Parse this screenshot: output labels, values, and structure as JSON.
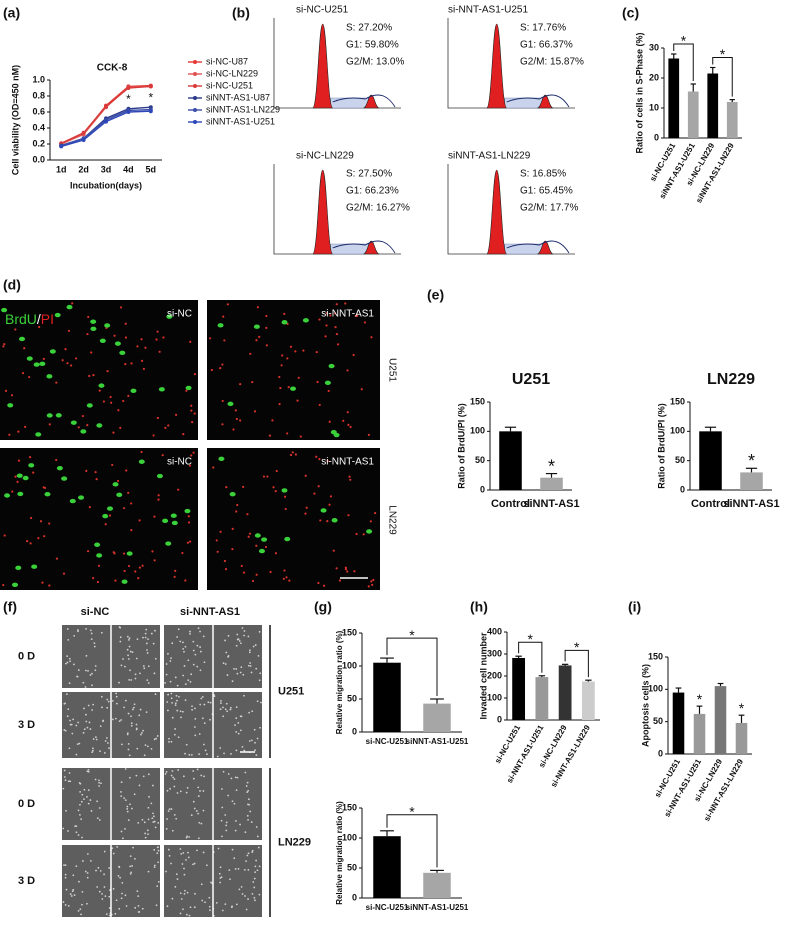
{
  "panel_labels": [
    "(a)",
    "(b)",
    "(c)",
    "(d)",
    "(e)",
    "(f)",
    "(g)",
    "(h)",
    "(i)"
  ],
  "flow_cytometry": [
    {
      "title": "si-NC-U251",
      "lines": [
        "S: 27.20%",
        "G1: 59.80%",
        "G2/M: 13.0%"
      ]
    },
    {
      "title": "si-NNT-AS1-U251",
      "lines": [
        "S: 17.76%",
        "G1: 66.37%",
        "G2/M: 15.87%"
      ]
    },
    {
      "title": "si-NC-LN229",
      "lines": [
        "S: 27.50%",
        "G1: 66.23%",
        "G2/M: 16.27%"
      ]
    },
    {
      "title": "siNNT-AS1-LN229",
      "lines": [
        "S: 16.85%",
        "G1: 65.45%",
        "G2/M: 17.7%"
      ]
    }
  ],
  "brdu_panel": {
    "stain_labels": [
      "BrdU",
      "/",
      "PI"
    ],
    "conditions": [
      "si-NC",
      "si-NNT-AS1",
      "si-NC",
      "si-NNT-AS1"
    ],
    "cell_lines": [
      "U251",
      "LN229"
    ]
  },
  "wound_panel": {
    "column_headers": [
      "si-NC",
      "si-NNT-AS1"
    ],
    "row_labels": [
      "0 D",
      "3 D",
      "0 D",
      "3 D"
    ],
    "cell_lines": [
      "U251",
      "LN229"
    ]
  },
  "chart_data": [
    {
      "type": "line",
      "title": "CCK-8",
      "x_label": "Incubation(days)",
      "y_label": "Cell viability (OD=450 nM)",
      "categories": [
        "1d",
        "2d",
        "3d",
        "4d",
        "5d"
      ],
      "ylim": [
        0,
        1.0
      ],
      "yticks": [
        {
          "value": 0,
          "label": "0.0"
        },
        {
          "value": 0.2,
          "label": "0.2"
        },
        {
          "value": 0.4,
          "label": "0.4"
        },
        {
          "value": 0.6,
          "label": "0.6"
        },
        {
          "value": 0.8,
          "label": "0.8"
        },
        {
          "value": 1.0,
          "label": "1.0"
        }
      ],
      "series": [
        {
          "name": "si-NC-U87",
          "color": "#e53935",
          "values": [
            0.2,
            0.33,
            0.68,
            0.92,
            0.93
          ]
        },
        {
          "name": "si-NC-LN229",
          "color": "#e05252",
          "values": [
            0.2,
            0.32,
            0.66,
            0.91,
            0.92
          ]
        },
        {
          "name": "si-NC-U251",
          "color": "#d83a3a",
          "values": [
            0.21,
            0.34,
            0.67,
            0.9,
            0.92
          ]
        },
        {
          "name": "siNNT-AS1-U87",
          "color": "#2b3a8c",
          "values": [
            0.18,
            0.27,
            0.52,
            0.64,
            0.66
          ]
        },
        {
          "name": "siNNT-AS1-LN229",
          "color": "#3b4fa8",
          "values": [
            0.18,
            0.27,
            0.5,
            0.62,
            0.63
          ]
        },
        {
          "name": "siNNT-AS1-U251",
          "color": "#2d46b9",
          "values": [
            0.17,
            0.25,
            0.48,
            0.6,
            0.61
          ]
        }
      ],
      "annotations": [
        "*",
        "*"
      ]
    },
    {
      "type": "bar",
      "y_label": "Ratio of cells in S-Phase (%)",
      "categories": [
        "si-NC-U251",
        "siNNT-AS1-U251",
        "si-NC-LN229",
        "siNNT-AS1-LN229"
      ],
      "values": [
        26.5,
        15.5,
        21.5,
        12
      ],
      "errors": [
        1.5,
        2.5,
        2,
        0.8
      ],
      "colors": [
        "#000000",
        "#a6a6a6",
        "#000000",
        "#a6a6a6"
      ],
      "ylim": [
        0,
        30
      ],
      "yticks": [
        0,
        10,
        20,
        30
      ],
      "annotations": [
        "*",
        "*"
      ]
    },
    {
      "type": "bar",
      "title": "U251",
      "y_label": "Ratio of BrdU/PI (%)",
      "categories": [
        "Control",
        "siNNT-AS1"
      ],
      "values": [
        100,
        21
      ],
      "errors": [
        7,
        7
      ],
      "colors": [
        "#000000",
        "#a6a6a6"
      ],
      "ylim": [
        0,
        150
      ],
      "yticks": [
        0,
        50,
        100,
        150
      ],
      "annotations": [
        "*"
      ]
    },
    {
      "type": "bar",
      "title": "LN229",
      "y_label": "Ratio of BrdU/PI (%)",
      "categories": [
        "Control",
        "siNNT-AS1"
      ],
      "values": [
        100,
        30
      ],
      "errors": [
        7,
        7
      ],
      "colors": [
        "#000000",
        "#a6a6a6"
      ],
      "ylim": [
        0,
        150
      ],
      "yticks": [
        0,
        50,
        100,
        150
      ],
      "annotations": [
        "*"
      ]
    },
    {
      "type": "bar",
      "y_label": "Relative migration ratio (%)",
      "categories": [
        "si-NC-U251",
        "siNNT-AS1-U251"
      ],
      "values": [
        105,
        43
      ],
      "errors": [
        7,
        7
      ],
      "colors": [
        "#000000",
        "#a6a6a6"
      ],
      "ylim": [
        0,
        150
      ],
      "yticks": [
        0,
        50,
        100,
        150
      ],
      "annotations": [
        "*"
      ]
    },
    {
      "type": "bar",
      "y_label": "Relative migration ratio (%)",
      "categories": [
        "si-NC-U251",
        "siNNT-AS1-U251"
      ],
      "values": [
        103,
        42
      ],
      "errors": [
        9,
        4
      ],
      "colors": [
        "#000000",
        "#a6a6a6"
      ],
      "ylim": [
        0,
        150
      ],
      "yticks": [
        0,
        50,
        100,
        150
      ],
      "annotations": [
        "*"
      ]
    },
    {
      "type": "bar",
      "y_label": "Invaded cell number",
      "categories": [
        "si-NC-U251",
        "si-NNT-AS1-U251",
        "si-NC-LN229",
        "si-NNT-AS1-LN229"
      ],
      "values": [
        282,
        195,
        248,
        175
      ],
      "errors": [
        8,
        6,
        5,
        6
      ],
      "colors": [
        "#000000",
        "#999999",
        "#333333",
        "#cccccc"
      ],
      "ylim": [
        0,
        400
      ],
      "yticks": [
        0,
        100,
        200,
        300,
        400
      ],
      "annotations": [
        "*",
        "*"
      ]
    },
    {
      "type": "bar",
      "y_label": "Apoptosis cells (%)",
      "categories": [
        "si-NC-U251",
        "si-NNT-AS1-U251",
        "si-NC-LN229",
        "si-NNT-AS1-LN229"
      ],
      "values": [
        95,
        62,
        105,
        48
      ],
      "errors": [
        7,
        12,
        4,
        12
      ],
      "colors": [
        "#000000",
        "#999999",
        "#777777",
        "#999999"
      ],
      "ylim": [
        0,
        150
      ],
      "yticks": [
        0,
        50,
        100,
        150
      ],
      "annotations": [
        "*",
        "*"
      ]
    }
  ]
}
